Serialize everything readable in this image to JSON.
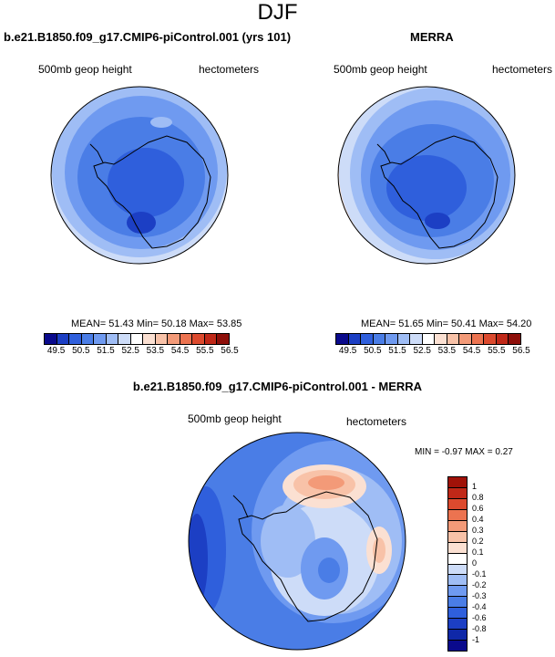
{
  "title": "DJF",
  "panels": [
    {
      "title": "b.e21.B1850.f09_g17.CMIP6-piControl.001 (yrs 101)",
      "left_label": "500mb geop height",
      "right_label": "hectometers",
      "stats": "MEAN=  51.43  Min=  50.18  Max=  53.85"
    },
    {
      "title": "MERRA",
      "left_label": "500mb geop height",
      "right_label": "hectometers",
      "stats": "MEAN=  51.65  Min=  50.41  Max=  54.20"
    },
    {
      "title": "b.e21.B1850.f09_g17.CMIP6-piControl.001 - MERRA",
      "left_label": "500mb geop height",
      "right_label": "hectometers",
      "stats": "MIN =  -0.97 MAX =   0.27"
    }
  ],
  "abs_colorbar": {
    "ticks": [
      "49.5",
      "50.5",
      "51.5",
      "52.5",
      "53.5",
      "54.5",
      "55.5",
      "56.5"
    ],
    "colors": [
      "#0a0a8c",
      "#1c3fc4",
      "#2f5fdc",
      "#4a7de6",
      "#6f9af0",
      "#9fbdf5",
      "#cddcf8",
      "#ffffff",
      "#fbe0d2",
      "#f8c2a8",
      "#f39a78",
      "#ec7350",
      "#dc4a2e",
      "#c02818",
      "#8e0f0a"
    ]
  },
  "diff_colorbar": {
    "ticks": [
      "1",
      "0.8",
      "0.6",
      "0.4",
      "0.3",
      "0.2",
      "0.1",
      "0",
      "-0.1",
      "-0.2",
      "-0.3",
      "-0.4",
      "-0.6",
      "-0.8",
      "-1"
    ],
    "colors": [
      "#a01208",
      "#c02818",
      "#dc4a2e",
      "#ec7350",
      "#f39a78",
      "#f8c2a8",
      "#fbe0d2",
      "#ffffff",
      "#cddcf8",
      "#9fbdf5",
      "#6f9af0",
      "#4a7de6",
      "#2f5fdc",
      "#1c3fc4",
      "#0f28a8",
      "#0a0a8c"
    ]
  }
}
